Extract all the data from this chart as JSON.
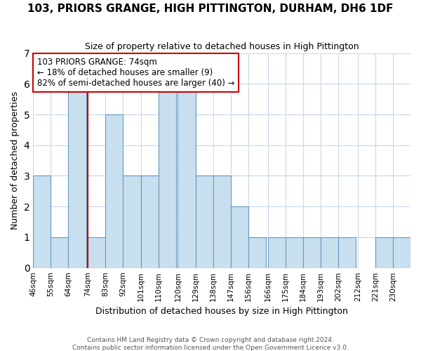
{
  "title": "103, PRIORS GRANGE, HIGH PITTINGTON, DURHAM, DH6 1DF",
  "subtitle": "Size of property relative to detached houses in High Pittington",
  "xlabel": "Distribution of detached houses by size in High Pittington",
  "ylabel": "Number of detached properties",
  "footer_line1": "Contains HM Land Registry data © Crown copyright and database right 2024.",
  "footer_line2": "Contains public sector information licensed under the Open Government Licence v3.0.",
  "bin_labels": [
    "46sqm",
    "55sqm",
    "64sqm",
    "74sqm",
    "83sqm",
    "92sqm",
    "101sqm",
    "110sqm",
    "120sqm",
    "129sqm",
    "138sqm",
    "147sqm",
    "156sqm",
    "166sqm",
    "175sqm",
    "184sqm",
    "193sqm",
    "202sqm",
    "212sqm",
    "221sqm",
    "230sqm"
  ],
  "bin_left_edges": [
    46,
    55,
    64,
    74,
    83,
    92,
    101,
    110,
    120,
    129,
    138,
    147,
    156,
    166,
    175,
    184,
    193,
    202,
    212,
    221,
    230
  ],
  "bin_width": 9,
  "bar_heights": [
    3,
    1,
    6,
    1,
    5,
    3,
    3,
    6,
    6,
    3,
    3,
    2,
    1,
    1,
    1,
    1,
    1,
    1,
    0,
    1,
    1
  ],
  "highlight_bin_index": 3,
  "bar_color": "#c8dff0",
  "bar_edge_color": "#6699bb",
  "highlight_line_color": "#cc0000",
  "ylim": [
    0,
    7
  ],
  "yticks": [
    0,
    1,
    2,
    3,
    4,
    5,
    6,
    7
  ],
  "grid_color": "#c8d8e8",
  "annotation_title": "103 PRIORS GRANGE: 74sqm",
  "annotation_line1": "← 18% of detached houses are smaller (9)",
  "annotation_line2": "82% of semi-detached houses are larger (40) →",
  "annotation_box_facecolor": "#ffffff",
  "annotation_box_edgecolor": "#cc0000",
  "title_fontsize": 11,
  "subtitle_fontsize": 9,
  "label_fontsize": 9,
  "tick_fontsize": 7.5,
  "footer_fontsize": 6.5,
  "annotation_fontsize": 8.5
}
